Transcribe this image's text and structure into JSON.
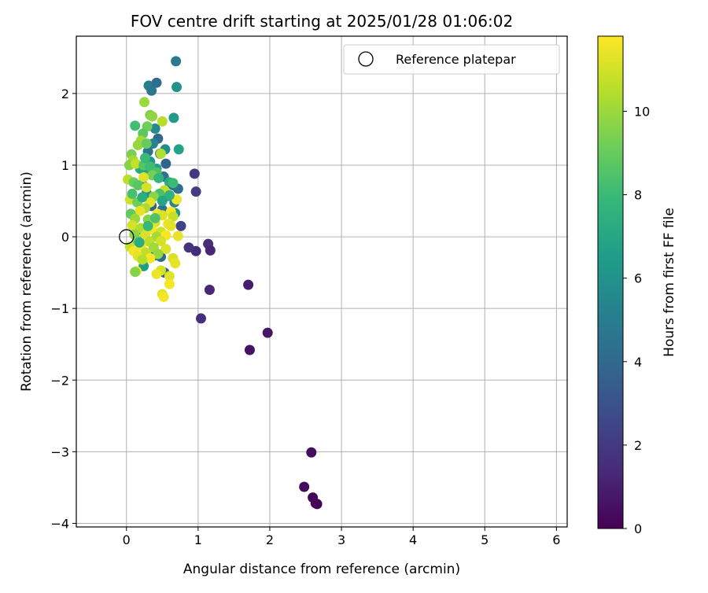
{
  "chart_data": {
    "type": "scatter",
    "title": "FOV centre drift starting at 2025/01/28 01:06:02",
    "xlabel": "Angular distance from reference (arcmin)",
    "ylabel": "Rotation from reference (arcmin)",
    "xlim": [
      -0.7,
      6.15
    ],
    "ylim": [
      -4.05,
      2.8
    ],
    "xticks": [
      0,
      1,
      2,
      3,
      4,
      5,
      6
    ],
    "xtick_labels": [
      "0",
      "1",
      "2",
      "3",
      "4",
      "5",
      "6"
    ],
    "yticks": [
      2,
      1,
      0,
      -1,
      -2,
      -3,
      -4
    ],
    "ytick_labels": [
      "2",
      "1",
      "0",
      "−1",
      "−2",
      "−3",
      "−4"
    ],
    "grid": true,
    "legend": {
      "placement": "top-right",
      "entries": [
        {
          "label": "Reference platepar",
          "marker": "open-circle"
        }
      ]
    },
    "reference_point": {
      "x": 0,
      "y": 0
    },
    "colorbar": {
      "label": "Hours from first FF file",
      "colormap": "viridis",
      "range": [
        0,
        11.8
      ],
      "ticks": [
        0,
        2,
        4,
        6,
        8,
        10
      ],
      "tick_labels": [
        "0",
        "2",
        "4",
        "6",
        "8",
        "10"
      ]
    },
    "colormap_stops": [
      "#440154",
      "#482878",
      "#3e4989",
      "#31688e",
      "#26828e",
      "#1f9e89",
      "#35b779",
      "#6ece58",
      "#b5de2b",
      "#fde725"
    ],
    "points": [
      {
        "x": 2.66,
        "y": -3.73,
        "t": 0.1
      },
      {
        "x": 2.64,
        "y": -3.72,
        "t": 0.15
      },
      {
        "x": 2.6,
        "y": -3.64,
        "t": 0.2
      },
      {
        "x": 2.48,
        "y": -3.49,
        "t": 0.3
      },
      {
        "x": 2.58,
        "y": -3.01,
        "t": 0.4
      },
      {
        "x": 1.72,
        "y": -1.58,
        "t": 0.6
      },
      {
        "x": 1.97,
        "y": -1.34,
        "t": 0.7
      },
      {
        "x": 1.7,
        "y": -0.67,
        "t": 0.9
      },
      {
        "x": 1.16,
        "y": -0.74,
        "t": 1.3
      },
      {
        "x": 1.04,
        "y": -1.14,
        "t": 1.6
      },
      {
        "x": 1.14,
        "y": -0.1,
        "t": 1.5
      },
      {
        "x": 1.17,
        "y": -0.19,
        "t": 1.2
      },
      {
        "x": 0.97,
        "y": -0.2,
        "t": 1.4
      },
      {
        "x": 0.87,
        "y": -0.15,
        "t": 1.8
      },
      {
        "x": 0.95,
        "y": 0.88,
        "t": 2.0
      },
      {
        "x": 0.97,
        "y": 0.63,
        "t": 2.1
      },
      {
        "x": 0.76,
        "y": 0.15,
        "t": 2.4
      },
      {
        "x": 0.69,
        "y": 2.45,
        "t": 4.8
      },
      {
        "x": 0.31,
        "y": 2.11,
        "t": 5.1
      },
      {
        "x": 0.35,
        "y": 2.04,
        "t": 4.7
      },
      {
        "x": 0.42,
        "y": 2.15,
        "t": 4.2
      },
      {
        "x": 0.7,
        "y": 2.09,
        "t": 6.0
      },
      {
        "x": 0.66,
        "y": 1.66,
        "t": 6.4
      },
      {
        "x": 0.73,
        "y": 1.22,
        "t": 6.8
      },
      {
        "x": 0.54,
        "y": 1.22,
        "t": 5.7
      },
      {
        "x": 0.55,
        "y": 1.02,
        "t": 3.8
      },
      {
        "x": 0.4,
        "y": 1.51,
        "t": 5.6
      },
      {
        "x": 0.44,
        "y": 1.37,
        "t": 4.1
      },
      {
        "x": 0.47,
        "y": 1.16,
        "t": 3.5
      },
      {
        "x": 0.37,
        "y": 1.3,
        "t": 5.3
      },
      {
        "x": 0.3,
        "y": 1.19,
        "t": 4.5
      },
      {
        "x": 0.33,
        "y": 1.05,
        "t": 6.1
      },
      {
        "x": 0.42,
        "y": 0.95,
        "t": 6.7
      },
      {
        "x": 0.52,
        "y": 0.84,
        "t": 4.6
      },
      {
        "x": 0.6,
        "y": 0.76,
        "t": 7.2
      },
      {
        "x": 0.65,
        "y": 0.72,
        "t": 3.9
      },
      {
        "x": 0.72,
        "y": 0.67,
        "t": 4.3
      },
      {
        "x": 0.58,
        "y": 0.57,
        "t": 5.0
      },
      {
        "x": 0.67,
        "y": 0.48,
        "t": 5.4
      },
      {
        "x": 0.68,
        "y": 0.33,
        "t": 6.2
      },
      {
        "x": 0.28,
        "y": 0.61,
        "t": 5.9
      },
      {
        "x": 0.22,
        "y": 0.73,
        "t": 4.9
      },
      {
        "x": 0.35,
        "y": 0.43,
        "t": 3.6
      },
      {
        "x": 0.5,
        "y": 0.38,
        "t": 4.4
      },
      {
        "x": 0.48,
        "y": -0.28,
        "t": 4.0
      },
      {
        "x": 0.53,
        "y": -0.5,
        "t": 3.7
      },
      {
        "x": 0.24,
        "y": -0.41,
        "t": 6.5
      },
      {
        "x": 0.4,
        "y": -0.26,
        "t": 5.2
      },
      {
        "x": 0.18,
        "y": 0.1,
        "t": 6.6
      },
      {
        "x": 0.27,
        "y": 0.87,
        "t": 6.9
      },
      {
        "x": 0.19,
        "y": 0.95,
        "t": 7.1
      },
      {
        "x": 0.12,
        "y": 1.55,
        "t": 8.2
      },
      {
        "x": 0.25,
        "y": 1.88,
        "t": 10.0
      },
      {
        "x": 0.33,
        "y": 1.7,
        "t": 9.5
      },
      {
        "x": 0.36,
        "y": 1.68,
        "t": 9.8
      },
      {
        "x": 0.5,
        "y": 1.61,
        "t": 10.5
      },
      {
        "x": 0.29,
        "y": 1.54,
        "t": 9.2
      },
      {
        "x": 0.23,
        "y": 1.44,
        "t": 8.8
      },
      {
        "x": 0.2,
        "y": 1.34,
        "t": 10.2
      },
      {
        "x": 0.16,
        "y": 1.28,
        "t": 9.9
      },
      {
        "x": 0.28,
        "y": 1.3,
        "t": 9.0
      },
      {
        "x": 0.48,
        "y": 1.16,
        "t": 10.4
      },
      {
        "x": 0.07,
        "y": 1.15,
        "t": 9.4
      },
      {
        "x": 0.09,
        "y": 1.07,
        "t": 10.1
      },
      {
        "x": 0.04,
        "y": 1.0,
        "t": 9.6
      },
      {
        "x": 0.13,
        "y": 1.02,
        "t": 10.8
      },
      {
        "x": 0.24,
        "y": 1.0,
        "t": 8.6
      },
      {
        "x": 0.33,
        "y": 0.98,
        "t": 8.1
      },
      {
        "x": 0.42,
        "y": 0.9,
        "t": 8.4
      },
      {
        "x": 0.36,
        "y": 0.86,
        "t": 9.3
      },
      {
        "x": 0.24,
        "y": 0.83,
        "t": 11.2
      },
      {
        "x": 0.02,
        "y": 0.8,
        "t": 10.6
      },
      {
        "x": 0.1,
        "y": 0.76,
        "t": 9.1
      },
      {
        "x": 0.16,
        "y": 0.72,
        "t": 8.7
      },
      {
        "x": 0.28,
        "y": 0.69,
        "t": 11.0
      },
      {
        "x": 0.53,
        "y": 0.65,
        "t": 10.7
      },
      {
        "x": 0.46,
        "y": 0.6,
        "t": 8.3
      },
      {
        "x": 0.38,
        "y": 0.56,
        "t": 9.7
      },
      {
        "x": 0.7,
        "y": 0.52,
        "t": 11.5
      },
      {
        "x": 0.05,
        "y": 0.52,
        "t": 10.9
      },
      {
        "x": 0.15,
        "y": 0.48,
        "t": 9.2
      },
      {
        "x": 0.33,
        "y": 0.48,
        "t": 11.3
      },
      {
        "x": 0.26,
        "y": 0.4,
        "t": 10.3
      },
      {
        "x": 0.19,
        "y": 0.36,
        "t": 11.4
      },
      {
        "x": 0.06,
        "y": 0.32,
        "t": 8.9
      },
      {
        "x": 0.43,
        "y": 0.32,
        "t": 11.6
      },
      {
        "x": 0.62,
        "y": 0.35,
        "t": 11.7
      },
      {
        "x": 0.5,
        "y": 0.3,
        "t": 11.1
      },
      {
        "x": 0.65,
        "y": 0.28,
        "t": 10.8
      },
      {
        "x": 0.12,
        "y": 0.25,
        "t": 10.0
      },
      {
        "x": 0.3,
        "y": 0.24,
        "t": 9.6
      },
      {
        "x": 0.4,
        "y": 0.2,
        "t": 11.2
      },
      {
        "x": 0.58,
        "y": 0.18,
        "t": 11.5
      },
      {
        "x": 0.08,
        "y": 0.16,
        "t": 11.0
      },
      {
        "x": 0.2,
        "y": 0.12,
        "t": 10.4
      },
      {
        "x": 0.35,
        "y": 0.1,
        "t": 11.6
      },
      {
        "x": 0.48,
        "y": 0.07,
        "t": 10.9
      },
      {
        "x": 0.62,
        "y": 0.15,
        "t": 11.3
      },
      {
        "x": 0.11,
        "y": 0.03,
        "t": 9.8
      },
      {
        "x": 0.26,
        "y": 0.02,
        "t": 11.1
      },
      {
        "x": 0.42,
        "y": 0.0,
        "t": 10.2
      },
      {
        "x": 0.55,
        "y": 0.02,
        "t": 11.7
      },
      {
        "x": 0.72,
        "y": 0.01,
        "t": 11.4
      },
      {
        "x": 0.15,
        "y": -0.05,
        "t": 9.3
      },
      {
        "x": 0.32,
        "y": -0.07,
        "t": 10.6
      },
      {
        "x": 0.48,
        "y": -0.06,
        "t": 11.0
      },
      {
        "x": 0.05,
        "y": -0.14,
        "t": 10.8
      },
      {
        "x": 0.2,
        "y": -0.13,
        "t": 11.5
      },
      {
        "x": 0.38,
        "y": -0.15,
        "t": 10.1
      },
      {
        "x": 0.55,
        "y": -0.17,
        "t": 11.2
      },
      {
        "x": 0.1,
        "y": -0.2,
        "t": 11.6
      },
      {
        "x": 0.27,
        "y": -0.22,
        "t": 10.7
      },
      {
        "x": 0.44,
        "y": -0.24,
        "t": 9.9
      },
      {
        "x": 0.16,
        "y": -0.27,
        "t": 11.3
      },
      {
        "x": 0.33,
        "y": -0.3,
        "t": 11.7
      },
      {
        "x": 0.65,
        "y": -0.3,
        "t": 11.1
      },
      {
        "x": 0.22,
        "y": -0.32,
        "t": 10.5
      },
      {
        "x": 0.68,
        "y": -0.37,
        "t": 11.4
      },
      {
        "x": 0.48,
        "y": -0.47,
        "t": 11.0
      },
      {
        "x": 0.14,
        "y": -0.48,
        "t": 11.6
      },
      {
        "x": 0.42,
        "y": -0.52,
        "t": 11.5
      },
      {
        "x": 0.6,
        "y": -0.55,
        "t": 11.2
      },
      {
        "x": 0.6,
        "y": -0.66,
        "t": 11.7
      },
      {
        "x": 0.5,
        "y": -0.8,
        "t": 11.3
      },
      {
        "x": 0.52,
        "y": -0.84,
        "t": 11.6
      },
      {
        "x": 0.12,
        "y": -0.49,
        "t": 9.6
      },
      {
        "x": 0.65,
        "y": 0.75,
        "t": 8.0
      },
      {
        "x": 0.6,
        "y": 0.58,
        "t": 7.6
      },
      {
        "x": 0.3,
        "y": 0.15,
        "t": 7.9
      },
      {
        "x": 0.22,
        "y": 0.55,
        "t": 7.4
      },
      {
        "x": 0.45,
        "y": 0.82,
        "t": 7.8
      },
      {
        "x": 0.18,
        "y": -0.08,
        "t": 7.3
      },
      {
        "x": 0.4,
        "y": 0.26,
        "t": 8.5
      },
      {
        "x": 0.26,
        "y": 1.1,
        "t": 8.0
      },
      {
        "x": 0.5,
        "y": 0.5,
        "t": 7.0
      },
      {
        "x": 0.08,
        "y": 0.6,
        "t": 8.3
      }
    ]
  }
}
